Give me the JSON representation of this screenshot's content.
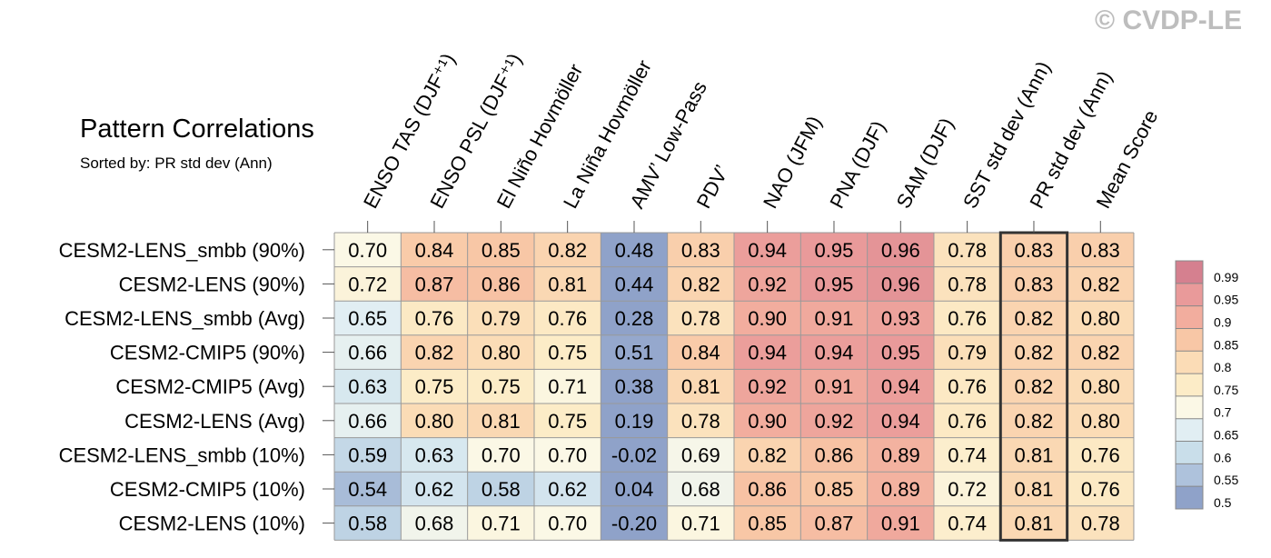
{
  "title": "Pattern Correlations",
  "subtitle": "Sorted by: PR std dev (Ann)",
  "watermark": "© CVDP-LE",
  "colors": {
    "low": "#8fa2c9",
    "mid": "#fbf8e6",
    "high": "#d5808f",
    "grid": "#999999",
    "highlight": "#333333"
  },
  "chart_data": {
    "type": "heatmap",
    "columns": [
      "ENSO TAS (DJF⁺¹)",
      "ENSO PSL (DJF⁺¹)",
      "El Niño Hovmöller",
      "La Niña Hovmöller",
      "AMV’ Low-Pass",
      "PDV’",
      "NAO (JFM)",
      "PNA (DJF)",
      "SAM (DJF)",
      "SST std dev (Ann)",
      "PR std dev (Ann)",
      "Mean Score"
    ],
    "rows": [
      "CESM2-LENS_smbb (90%)",
      "CESM2-LENS (90%)",
      "CESM2-LENS_smbb (Avg)",
      "CESM2-CMIP5 (90%)",
      "CESM2-CMIP5 (Avg)",
      "CESM2-LENS (Avg)",
      "CESM2-LENS_smbb (10%)",
      "CESM2-CMIP5 (10%)",
      "CESM2-LENS (10%)"
    ],
    "values": [
      [
        "0.70",
        "0.84",
        "0.85",
        "0.82",
        "0.48",
        "0.83",
        "0.94",
        "0.95",
        "0.96",
        "0.78",
        "0.83",
        "0.83"
      ],
      [
        "0.72",
        "0.87",
        "0.86",
        "0.81",
        "0.44",
        "0.82",
        "0.92",
        "0.95",
        "0.96",
        "0.78",
        "0.83",
        "0.82"
      ],
      [
        "0.65",
        "0.76",
        "0.79",
        "0.76",
        "0.28",
        "0.78",
        "0.90",
        "0.91",
        "0.93",
        "0.76",
        "0.82",
        "0.80"
      ],
      [
        "0.66",
        "0.82",
        "0.80",
        "0.75",
        "0.51",
        "0.84",
        "0.94",
        "0.94",
        "0.95",
        "0.79",
        "0.82",
        "0.82"
      ],
      [
        "0.63",
        "0.75",
        "0.75",
        "0.71",
        "0.38",
        "0.81",
        "0.92",
        "0.91",
        "0.94",
        "0.76",
        "0.82",
        "0.80"
      ],
      [
        "0.66",
        "0.80",
        "0.81",
        "0.75",
        "0.19",
        "0.78",
        "0.90",
        "0.92",
        "0.94",
        "0.76",
        "0.82",
        "0.80"
      ],
      [
        "0.59",
        "0.63",
        "0.70",
        "0.70",
        "-0.02",
        "0.69",
        "0.82",
        "0.86",
        "0.89",
        "0.74",
        "0.81",
        "0.76"
      ],
      [
        "0.54",
        "0.62",
        "0.58",
        "0.62",
        "0.04",
        "0.68",
        "0.86",
        "0.85",
        "0.89",
        "0.72",
        "0.81",
        "0.76"
      ],
      [
        "0.58",
        "0.68",
        "0.71",
        "0.70",
        "-0.20",
        "0.71",
        "0.85",
        "0.87",
        "0.91",
        "0.74",
        "0.81",
        "0.78"
      ]
    ],
    "highlight_column": "PR std dev (Ann)",
    "colorbar": {
      "labels": [
        "0.99",
        "0.95",
        "0.9",
        "0.85",
        "0.8",
        "0.75",
        "0.7",
        "0.65",
        "0.6",
        "0.55",
        "0.5"
      ],
      "colors": [
        "#d5808f",
        "#e99a9a",
        "#f2ad9e",
        "#f8c7a6",
        "#fbdcb6",
        "#fcecc7",
        "#fbf8e6",
        "#e1eef3",
        "#c9deea",
        "#aec2dc",
        "#8fa2c9"
      ]
    }
  }
}
